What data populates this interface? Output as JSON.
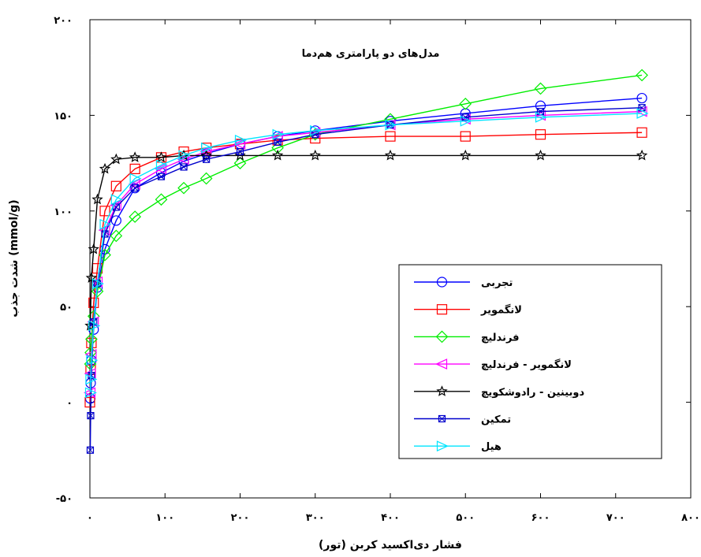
{
  "chart_data": {
    "type": "line",
    "annotation": "مدل‌های دو پارامتری هم‌دما",
    "xlabel": "فشار دی‌اکسید کربن (تور)",
    "ylabel": "شدت جذب (mmol/g)",
    "xlim": [
      0,
      800
    ],
    "ylim": [
      -50,
      200
    ],
    "x_ticks": [
      0,
      100,
      200,
      300,
      400,
      500,
      600,
      700,
      800
    ],
    "x_tick_labels": [
      "۰",
      "۱۰۰",
      "۲۰۰",
      "۳۰۰",
      "۴۰۰",
      "۵۰۰",
      "۶۰۰",
      "۷۰۰",
      "۸۰۰"
    ],
    "y_ticks": [
      -50,
      0,
      50,
      100,
      150,
      200
    ],
    "y_tick_labels": [
      "-۵۰",
      "۰",
      "۵۰",
      "۱۰۰",
      "۱۵۰",
      "۲۰۰"
    ],
    "grid": false,
    "legend_position": "right",
    "series": [
      {
        "name": "تجربی",
        "color": "#0000ff",
        "marker": "circle",
        "x": [
          0.5,
          1,
          2,
          5,
          10,
          20,
          35,
          60,
          95,
          125,
          155,
          200,
          250,
          300,
          400,
          500,
          600,
          735
        ],
        "y": [
          2,
          10,
          22,
          38,
          60,
          80,
          95,
          112,
          120,
          126,
          130,
          135,
          139,
          142,
          147,
          151,
          155,
          159
        ]
      },
      {
        "name": "لانگمویر",
        "color": "#ff0000",
        "marker": "square",
        "x": [
          0,
          1,
          2,
          5,
          10,
          20,
          35,
          60,
          95,
          125,
          155,
          200,
          250,
          300,
          400,
          500,
          600,
          735
        ],
        "y": [
          0,
          17,
          31,
          52,
          70,
          100,
          113,
          122,
          128,
          131,
          133,
          135,
          137,
          138,
          139,
          139,
          140,
          141
        ]
      },
      {
        "name": "فرندلیچ",
        "color": "#00ee00",
        "marker": "diamond",
        "x": [
          0.5,
          1,
          2,
          5,
          10,
          20,
          35,
          60,
          95,
          125,
          155,
          200,
          250,
          300,
          400,
          500,
          600,
          735
        ],
        "y": [
          20,
          26,
          33,
          45,
          58,
          77,
          87,
          97,
          106,
          112,
          117,
          125,
          133,
          140,
          148,
          156,
          164,
          171
        ]
      },
      {
        "name": "لانگمویر - فرندلیچ",
        "color": "#ff00ff",
        "marker": "triangle-left",
        "x": [
          0.5,
          1,
          2,
          5,
          10,
          20,
          35,
          60,
          95,
          125,
          155,
          200,
          250,
          300,
          400,
          500,
          600,
          735
        ],
        "y": [
          5,
          15,
          25,
          42,
          63,
          90,
          103,
          114,
          122,
          127,
          131,
          135,
          139,
          141,
          145,
          148,
          150,
          152
        ]
      },
      {
        "name": "دوبینین - رادوشکویچ",
        "color": "#000000",
        "marker": "star",
        "x": [
          0.5,
          2,
          5,
          10,
          20,
          35,
          60,
          95,
          125,
          155,
          200,
          250,
          300,
          400,
          500,
          600,
          735
        ],
        "y": [
          40,
          65,
          80,
          106,
          122,
          127,
          128,
          128,
          129,
          129,
          129,
          129,
          129,
          129,
          129,
          129,
          129
        ]
      },
      {
        "name": "تمکین",
        "color": "#0000cc",
        "marker": "square-x",
        "x": [
          0.5,
          1,
          2,
          5,
          10,
          20,
          35,
          60,
          95,
          125,
          155,
          200,
          250,
          300,
          400,
          500,
          600,
          735
        ],
        "y": [
          -25,
          -7,
          14,
          42,
          62,
          88,
          102,
          112,
          118,
          123,
          127,
          131,
          136,
          140,
          145,
          149,
          152,
          154
        ]
      },
      {
        "name": "هیل",
        "color": "#00e5ff",
        "marker": "triangle-right",
        "x": [
          0.5,
          1,
          2,
          5,
          10,
          20,
          35,
          60,
          95,
          125,
          155,
          200,
          250,
          300,
          400,
          500,
          600,
          735
        ],
        "y": [
          5,
          12,
          22,
          40,
          62,
          93,
          106,
          117,
          124,
          129,
          133,
          137,
          140,
          142,
          145,
          147,
          149,
          151
        ]
      }
    ]
  }
}
